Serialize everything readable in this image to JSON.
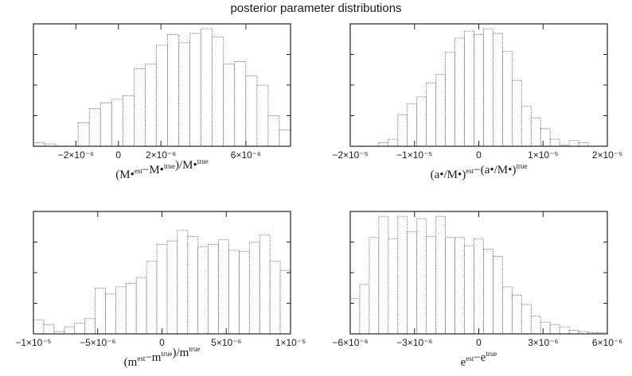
{
  "figure": {
    "title": "posterior parameter distributions"
  },
  "chart_data": [
    {
      "type": "bar",
      "xlabel": "(M•est−M•true)/M•true",
      "xlim": [
        -4e-06,
        8.1e-06
      ],
      "ticks": [
        -2e-06,
        0,
        2e-06,
        6e-06
      ],
      "tick_labels": [
        "−2×10⁻⁶",
        "0",
        "2×10⁻⁶",
        "6×10⁻⁶"
      ],
      "values": [
        0.03,
        0.02,
        0,
        0,
        0.2,
        0.32,
        0.37,
        0.4,
        0.43,
        0.66,
        0.7,
        0.86,
        0.95,
        0.88,
        0.96,
        1.0,
        0.93,
        0.7,
        0.72,
        0.6,
        0.52,
        0.26,
        0.14
      ]
    },
    {
      "type": "bar",
      "xlabel": "(a•/M•)est−(a•/M•)true",
      "xlim": [
        -2e-05,
        2e-05
      ],
      "ticks": [
        -2e-05,
        -1e-05,
        0,
        1e-05,
        2e-05
      ],
      "tick_labels": [
        "−2×10⁻⁵",
        "−1×10⁻⁵",
        "0",
        "1×10⁻⁵",
        "2×10⁻⁵"
      ],
      "values": [
        0,
        0,
        0,
        0.03,
        0.06,
        0.27,
        0.36,
        0.42,
        0.54,
        0.61,
        0.8,
        0.92,
        0.98,
        0.95,
        1.0,
        0.96,
        0.81,
        0.56,
        0.34,
        0.24,
        0.15,
        0.06,
        0.01,
        0.05,
        0.03,
        0,
        0
      ]
    },
    {
      "type": "bar",
      "xlabel": "(mest−mtrue)/mtrue",
      "xlim": [
        -1e-05,
        1e-05
      ],
      "ticks": [
        -1e-05,
        -5e-06,
        0,
        5e-06,
        1e-05
      ],
      "tick_labels": [
        "−1×10⁻⁵",
        "−5×10⁻⁶",
        "0",
        "5×10⁻⁶",
        "1×10⁻⁵"
      ],
      "values": [
        0.12,
        0.08,
        0.02,
        0.06,
        0.09,
        0.13,
        0.39,
        0.34,
        0.4,
        0.43,
        0.48,
        0.62,
        0.76,
        0.79,
        0.88,
        0.83,
        0.74,
        0.76,
        0.8,
        0.71,
        0.7,
        0.78,
        0.84,
        0.62,
        0.54
      ]
    },
    {
      "type": "bar",
      "xlabel": "eest−etrue",
      "xlim": [
        -6e-06,
        6e-06
      ],
      "ticks": [
        -6e-06,
        -3e-06,
        0,
        3e-06,
        6e-06
      ],
      "tick_labels": [
        "−6×10⁻⁶",
        "−3×10⁻⁶",
        "0",
        "3×10⁻⁶",
        "6×10⁻⁶"
      ],
      "values": [
        0.3,
        0.42,
        0.82,
        1.0,
        0.81,
        1.0,
        0.87,
        0.98,
        0.83,
        1.0,
        0.82,
        0.82,
        0.75,
        0.81,
        0.72,
        0.66,
        0.4,
        0.33,
        0.25,
        0.15,
        0.1,
        0.08,
        0.06,
        0.03,
        0.02,
        0.01,
        0.01
      ]
    }
  ]
}
